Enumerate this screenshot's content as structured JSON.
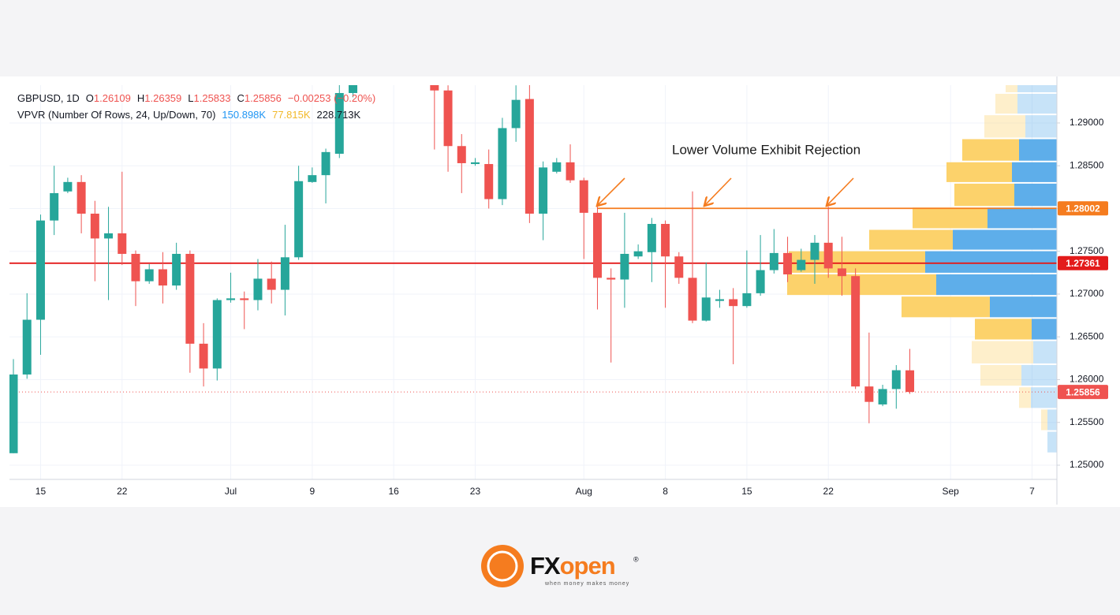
{
  "header": {
    "symbol": "GBPUSD, 1D",
    "o_label": "O",
    "o": "1.26109",
    "h_label": "H",
    "h": "1.26359",
    "l_label": "L",
    "l": "1.25833",
    "c_label": "C",
    "c": "1.25856",
    "change": "−0.00253 (−0.20%)"
  },
  "indicator": {
    "name": "VPVR (Number Of Rows, 24, Up/Down, 70)",
    "up_total": "150.898K",
    "down_total": "77.815K",
    "total": "228.713K"
  },
  "chart_data": {
    "type": "candlestick",
    "annotation": "Lower Volume Exhibit Rejection",
    "categories": [
      null,
      null,
      "15",
      null,
      null,
      null,
      null,
      null,
      "22",
      null,
      null,
      null,
      null,
      null,
      null,
      null,
      "Jul",
      null,
      null,
      null,
      null,
      null,
      "9",
      null,
      null,
      null,
      null,
      null,
      "16",
      null,
      null,
      null,
      null,
      null,
      "23",
      null,
      null,
      null,
      null,
      null,
      null,
      null,
      "Aug",
      null,
      null,
      null,
      null,
      null,
      "8",
      null,
      null,
      null,
      null,
      null,
      "15",
      null,
      null,
      null,
      null,
      null,
      "22",
      null,
      null,
      null,
      null,
      null,
      null,
      null,
      null,
      "Sep",
      null,
      null,
      null,
      null,
      null,
      "7",
      null
    ],
    "open": [
      1.2514,
      1.2606,
      1.267,
      1.2786,
      1.282,
      1.2831,
      1.2794,
      1.2765,
      1.2771,
      1.2747,
      1.2715,
      1.2729,
      1.271,
      1.2747,
      1.2642,
      1.2613,
      1.2693,
      1.2695,
      1.2693,
      1.2718,
      1.2705,
      1.2743,
      1.2831,
      1.2839,
      1.2864,
      1.2935,
      null,
      null,
      null,
      null,
      null,
      1.296,
      1.2938,
      1.2873,
      1.2852,
      1.2852,
      1.2811,
      1.2894,
      1.2928,
      1.2794,
      1.2843,
      1.2854,
      1.2833,
      1.2795,
      1.2719,
      1.2717,
      1.2744,
      1.2749,
      1.2782,
      1.2744,
      1.2719,
      1.2669,
      1.2692,
      1.2694,
      1.2686,
      1.2701,
      1.2728,
      1.2748,
      1.2728,
      1.274,
      1.276,
      1.273,
      1.2721,
      1.2592,
      1.2571,
      1.2589,
      1.26109,
      null,
      null,
      null,
      null,
      null,
      null,
      null,
      null,
      null,
      null
    ],
    "high": [
      1.2624,
      1.2701,
      1.2793,
      1.285,
      1.2836,
      1.2839,
      1.2809,
      1.2802,
      1.2843,
      1.2751,
      1.2735,
      1.2749,
      1.276,
      1.2751,
      1.2666,
      1.2695,
      1.2725,
      1.2703,
      1.2741,
      1.2738,
      1.2781,
      1.285,
      1.2848,
      1.287,
      1.2947,
      1.2975,
      null,
      null,
      null,
      null,
      null,
      1.2965,
      1.2944,
      1.2887,
      1.2859,
      1.2869,
      1.2906,
      1.2944,
      1.295,
      1.2855,
      1.2859,
      1.2875,
      1.2836,
      1.2802,
      1.273,
      1.2795,
      1.2758,
      1.2789,
      1.2786,
      1.2749,
      1.282,
      1.2737,
      1.2705,
      1.2707,
      1.2751,
      1.2769,
      1.2776,
      1.2767,
      1.2753,
      1.2769,
      1.2802,
      1.2767,
      1.273,
      1.2655,
      1.2594,
      1.2617,
      1.26359,
      null,
      null,
      null,
      null,
      null,
      null,
      null,
      null,
      null,
      null
    ],
    "low": [
      1.2514,
      1.2601,
      1.2629,
      1.2769,
      1.2818,
      1.2771,
      1.2715,
      1.2693,
      1.2734,
      1.2686,
      1.2712,
      1.2689,
      1.2705,
      1.2608,
      1.2592,
      1.2599,
      1.269,
      1.2659,
      1.2681,
      1.2689,
      1.2675,
      1.274,
      1.283,
      1.2806,
      1.2859,
      1.293,
      null,
      null,
      null,
      null,
      null,
      1.2869,
      1.2843,
      1.2818,
      1.285,
      1.28,
      1.2804,
      1.2878,
      1.2783,
      1.2763,
      1.2841,
      1.283,
      1.2741,
      1.2682,
      1.262,
      1.2684,
      1.2741,
      1.2714,
      1.2684,
      1.2712,
      1.2666,
      1.2668,
      1.2684,
      1.2618,
      1.2684,
      1.2698,
      1.2724,
      1.2714,
      1.2726,
      1.2712,
      1.2719,
      1.2698,
      1.2589,
      1.2549,
      1.2569,
      1.2566,
      1.25833,
      null,
      null,
      null,
      null,
      null,
      null,
      null,
      null,
      null,
      null
    ],
    "close": [
      1.2606,
      1.267,
      1.2786,
      1.2818,
      1.2831,
      1.2794,
      1.2765,
      1.2771,
      1.2747,
      1.2715,
      1.2729,
      1.271,
      1.2747,
      1.2642,
      1.2613,
      1.2693,
      1.2695,
      1.2693,
      1.2718,
      1.2705,
      1.2743,
      1.2832,
      1.2839,
      1.2866,
      1.2935,
      1.295,
      null,
      null,
      null,
      null,
      null,
      1.2938,
      1.2873,
      1.2853,
      1.2854,
      1.2811,
      1.2894,
      1.2927,
      1.2794,
      1.2848,
      1.2854,
      1.2833,
      1.2795,
      1.2719,
      1.2717,
      1.2747,
      1.275,
      1.2782,
      1.2744,
      1.2719,
      1.2669,
      1.2696,
      1.2694,
      1.2686,
      1.2701,
      1.2728,
      1.2748,
      1.2723,
      1.274,
      1.276,
      1.273,
      1.2721,
      1.2592,
      1.2574,
      1.2589,
      1.2611,
      1.25856,
      null,
      null,
      null,
      null,
      null,
      null,
      null,
      null,
      null,
      null
    ],
    "up_color": "#26a69a",
    "down_color": "#ef5350",
    "ylim": [
      1.24834,
      1.29442
    ],
    "yticks": [
      {
        "value": 1.25,
        "label": "1.25000"
      },
      {
        "value": 1.255,
        "label": "1.25500"
      },
      {
        "value": 1.26,
        "label": "1.26000"
      },
      {
        "value": 1.265,
        "label": "1.26500"
      },
      {
        "value": 1.27,
        "label": "1.27000"
      },
      {
        "value": 1.275,
        "label": "1.27500"
      },
      {
        "value": 1.28,
        "label": "1.28000"
      },
      {
        "value": 1.285,
        "label": "1.28500"
      },
      {
        "value": 1.29,
        "label": "1.29000"
      }
    ],
    "grid": true,
    "hlines": [
      {
        "value": 1.28002,
        "color": "#f57c1f"
      },
      {
        "value": 1.27361,
        "color": "#e31b1b"
      },
      {
        "value": 1.25856,
        "color": "#ef5350",
        "style": "dotted"
      }
    ],
    "volume_profile": {
      "bins": [
        1.2514,
        1.254,
        1.2566,
        1.2592,
        1.2618,
        1.2646,
        1.2672,
        1.2698,
        1.2724,
        1.2751,
        1.2776,
        1.2802,
        1.283,
        1.2855,
        1.2882,
        1.291,
        1.2935,
        1.296
      ],
      "up": [
        12,
        12,
        33,
        45,
        30,
        32,
        85,
        153,
        167,
        132,
        88,
        54,
        57,
        48,
        40,
        50,
        50
      ],
      "down": [
        0,
        8,
        15,
        52,
        78,
        72,
        112,
        189,
        173,
        106,
        95,
        76,
        83,
        72,
        52,
        28,
        15
      ],
      "up_color": "#5eaeea",
      "down_color": "#fcd26b",
      "value_area": [
        5,
        13
      ],
      "xlim": [
        0,
        400
      ]
    }
  },
  "footer": {
    "brand_fx": "FX",
    "brand_open": "open",
    "registered": "®",
    "tagline": "when money makes money"
  }
}
